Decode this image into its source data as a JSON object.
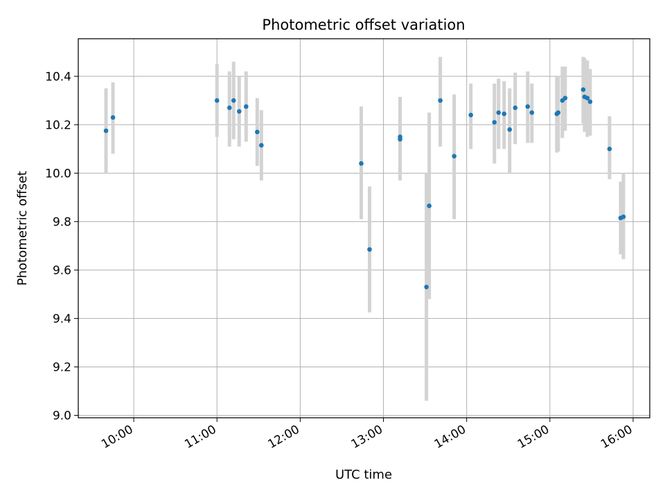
{
  "chart_data": {
    "type": "scatter",
    "title": "Photometric offset variation",
    "xlabel": "UTC time",
    "ylabel": "Photometric offset",
    "x_axis_type": "time",
    "xlim": [
      "09:20",
      "16:12"
    ],
    "ylim": [
      8.99,
      10.555
    ],
    "x_ticks": [
      "10:00",
      "11:00",
      "12:00",
      "13:00",
      "14:00",
      "15:00",
      "16:00"
    ],
    "y_ticks": [
      "9.0",
      "9.2",
      "9.4",
      "9.6",
      "9.8",
      "10.0",
      "10.2",
      "10.4"
    ],
    "grid": true,
    "errorbar_color": "#d3d3d3",
    "point_color": "#1f77b4",
    "points": [
      {
        "x": "09:40",
        "y": 10.175,
        "ylow": 10.0,
        "yhigh": 10.35
      },
      {
        "x": "09:45",
        "y": 10.23,
        "ylow": 10.08,
        "yhigh": 10.375
      },
      {
        "x": "11:00",
        "y": 10.3,
        "ylow": 10.15,
        "yhigh": 10.45
      },
      {
        "x": "11:09",
        "y": 10.27,
        "ylow": 10.11,
        "yhigh": 10.42
      },
      {
        "x": "11:12",
        "y": 10.3,
        "ylow": 10.14,
        "yhigh": 10.46
      },
      {
        "x": "11:16",
        "y": 10.255,
        "ylow": 10.11,
        "yhigh": 10.4
      },
      {
        "x": "11:21",
        "y": 10.275,
        "ylow": 10.13,
        "yhigh": 10.42
      },
      {
        "x": "11:29",
        "y": 10.17,
        "ylow": 10.03,
        "yhigh": 10.31
      },
      {
        "x": "11:32",
        "y": 10.115,
        "ylow": 9.97,
        "yhigh": 10.26
      },
      {
        "x": "12:44",
        "y": 10.04,
        "ylow": 9.81,
        "yhigh": 10.275
      },
      {
        "x": "12:50",
        "y": 9.685,
        "ylow": 9.425,
        "yhigh": 9.945
      },
      {
        "x": "13:12",
        "y": 10.14,
        "ylow": 9.97,
        "yhigh": 10.315
      },
      {
        "x": "13:12",
        "y": 10.15,
        "ylow": 9.98,
        "yhigh": 10.3
      },
      {
        "x": "13:31",
        "y": 9.53,
        "ylow": 9.06,
        "yhigh": 10.0
      },
      {
        "x": "13:33",
        "y": 9.865,
        "ylow": 9.48,
        "yhigh": 10.25
      },
      {
        "x": "13:41",
        "y": 10.3,
        "ylow": 10.11,
        "yhigh": 10.48
      },
      {
        "x": "13:51",
        "y": 10.07,
        "ylow": 9.81,
        "yhigh": 10.325
      },
      {
        "x": "14:03",
        "y": 10.24,
        "ylow": 10.1,
        "yhigh": 10.37
      },
      {
        "x": "14:20",
        "y": 10.21,
        "ylow": 10.04,
        "yhigh": 10.37
      },
      {
        "x": "14:23",
        "y": 10.25,
        "ylow": 10.1,
        "yhigh": 10.39
      },
      {
        "x": "14:27",
        "y": 10.245,
        "ylow": 10.1,
        "yhigh": 10.38
      },
      {
        "x": "14:31",
        "y": 10.18,
        "ylow": 10.0,
        "yhigh": 10.35
      },
      {
        "x": "14:35",
        "y": 10.27,
        "ylow": 10.12,
        "yhigh": 10.415
      },
      {
        "x": "14:44",
        "y": 10.275,
        "ylow": 10.125,
        "yhigh": 10.42
      },
      {
        "x": "14:47",
        "y": 10.25,
        "ylow": 10.125,
        "yhigh": 10.37
      },
      {
        "x": "15:05",
        "y": 10.245,
        "ylow": 10.085,
        "yhigh": 10.4
      },
      {
        "x": "15:06",
        "y": 10.25,
        "ylow": 10.09,
        "yhigh": 10.4
      },
      {
        "x": "15:09",
        "y": 10.3,
        "ylow": 10.145,
        "yhigh": 10.44
      },
      {
        "x": "15:11",
        "y": 10.31,
        "ylow": 10.175,
        "yhigh": 10.44
      },
      {
        "x": "15:24",
        "y": 10.345,
        "ylow": 10.205,
        "yhigh": 10.48
      },
      {
        "x": "15:25",
        "y": 10.315,
        "ylow": 10.17,
        "yhigh": 10.475
      },
      {
        "x": "15:27",
        "y": 10.31,
        "ylow": 10.15,
        "yhigh": 10.465
      },
      {
        "x": "15:29",
        "y": 10.295,
        "ylow": 10.155,
        "yhigh": 10.43
      },
      {
        "x": "15:43",
        "y": 10.1,
        "ylow": 9.975,
        "yhigh": 10.235
      },
      {
        "x": "15:51",
        "y": 9.815,
        "ylow": 9.665,
        "yhigh": 9.965
      },
      {
        "x": "15:53",
        "y": 9.82,
        "ylow": 9.645,
        "yhigh": 10.0
      }
    ]
  }
}
